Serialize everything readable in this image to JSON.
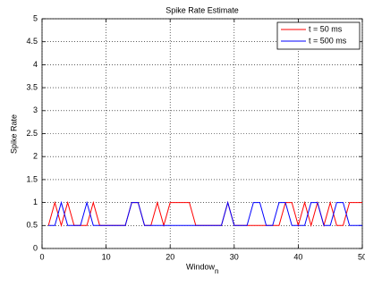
{
  "chart_data": {
    "type": "line",
    "title": "Spike Rate Estimate",
    "xlabel": "Window",
    "xlabel_subscript": "n",
    "ylabel": "Spike Rate",
    "x": [
      1,
      2,
      3,
      4,
      5,
      6,
      7,
      8,
      9,
      10,
      11,
      12,
      13,
      14,
      15,
      16,
      17,
      18,
      19,
      20,
      21,
      22,
      23,
      24,
      25,
      26,
      27,
      28,
      29,
      30,
      31,
      32,
      33,
      34,
      35,
      36,
      37,
      38,
      39,
      40,
      41,
      42,
      43,
      44,
      45,
      46,
      47,
      48,
      49,
      50
    ],
    "series": [
      {
        "name": "t = 50 ms",
        "color": "#ff0000",
        "values": [
          0.5,
          1,
          0.5,
          1,
          0.5,
          0.5,
          0.5,
          1,
          0.5,
          0.5,
          0.5,
          0.5,
          0.5,
          1,
          1,
          0.5,
          0.5,
          1,
          0.5,
          1,
          1,
          1,
          1,
          0.5,
          0.5,
          0.5,
          0.5,
          0.5,
          1,
          0.5,
          0.5,
          0.5,
          0.5,
          0.5,
          0.5,
          0.5,
          0.5,
          1,
          1,
          0.5,
          1,
          0.5,
          1,
          0.5,
          1,
          0.5,
          0.5,
          1,
          1,
          1
        ]
      },
      {
        "name": "t = 500 ms",
        "color": "#0000ff",
        "values": [
          0.5,
          0.5,
          1,
          0.5,
          0.5,
          0.5,
          1,
          0.5,
          0.5,
          0.5,
          0.5,
          0.5,
          0.5,
          1,
          1,
          0.5,
          0.5,
          0.5,
          0.5,
          0.5,
          0.5,
          0.5,
          0.5,
          0.5,
          0.5,
          0.5,
          0.5,
          0.5,
          1,
          0.5,
          0.5,
          0.5,
          1,
          1,
          0.5,
          0.5,
          1,
          1,
          0.5,
          0.5,
          0.5,
          1,
          1,
          0.5,
          0.5,
          1,
          1,
          0.5,
          0.5,
          0.5
        ]
      }
    ],
    "xlim": [
      0,
      50
    ],
    "xticks": [
      0,
      10,
      20,
      30,
      40,
      50
    ],
    "ylim": [
      0,
      5
    ],
    "yticks": [
      0,
      0.5,
      1,
      1.5,
      2,
      2.5,
      3,
      3.5,
      4,
      4.5,
      5
    ],
    "grid": true,
    "legend": "top-right"
  }
}
